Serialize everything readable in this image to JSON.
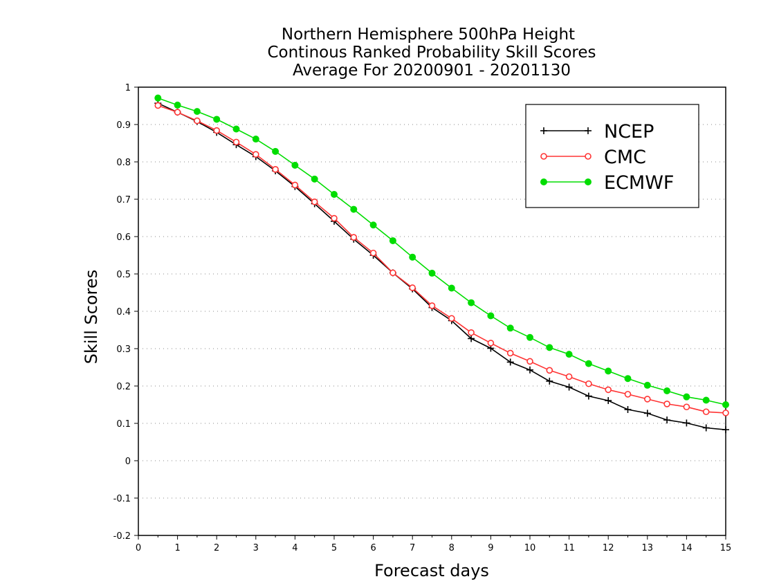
{
  "chart_data": {
    "type": "line",
    "title_lines": [
      "Northern Hemisphere 500hPa Height",
      "Continous Ranked Probability Skill Scores",
      "Average For 20200901 - 20201130"
    ],
    "xlabel": "Forecast days",
    "ylabel": "Skill Scores",
    "xlim": [
      0,
      15
    ],
    "ylim": [
      -0.2,
      1
    ],
    "xticks": [
      0,
      1,
      2,
      3,
      4,
      5,
      6,
      7,
      8,
      9,
      10,
      11,
      12,
      13,
      14,
      15
    ],
    "xtick_labels": [
      "0",
      "1",
      "2",
      "3",
      "4",
      "5",
      "6",
      "7",
      "8",
      "9",
      "10",
      "11",
      "12",
      "13",
      "14",
      "15"
    ],
    "yticks": [
      -0.2,
      -0.1,
      0,
      0.1,
      0.2,
      0.3,
      0.4,
      0.5,
      0.6,
      0.7,
      0.8,
      0.9,
      1
    ],
    "ytick_labels": [
      "-0.2",
      "-0.1",
      "0",
      "0.1",
      "0.2",
      "0.3",
      "0.4",
      "0.5",
      "0.6",
      "0.7",
      "0.8",
      "0.9",
      "1"
    ],
    "grid": "horizontal dotted",
    "legend_position": "top-right",
    "x": [
      0.5,
      1,
      1.5,
      2,
      2.5,
      3,
      3.5,
      4,
      4.5,
      5,
      5.5,
      6,
      6.5,
      7,
      7.5,
      8,
      8.5,
      9,
      9.5,
      10,
      10.5,
      11,
      11.5,
      12,
      12.5,
      13,
      13.5,
      14,
      14.5,
      15
    ],
    "series": [
      {
        "name": "NCEP",
        "color": "#000000",
        "marker": "plus",
        "values": [
          0.957,
          0.933,
          0.908,
          0.879,
          0.846,
          0.814,
          0.776,
          0.734,
          0.688,
          0.641,
          0.593,
          0.55,
          0.503,
          0.46,
          0.41,
          0.375,
          0.327,
          0.301,
          0.264,
          0.243,
          0.213,
          0.197,
          0.173,
          0.161,
          0.137,
          0.127,
          0.109,
          0.101,
          0.088,
          0.083
        ]
      },
      {
        "name": "CMC",
        "color": "#ff3333",
        "marker": "open-circle",
        "values": [
          0.951,
          0.933,
          0.91,
          0.884,
          0.853,
          0.82,
          0.78,
          0.738,
          0.693,
          0.649,
          0.598,
          0.556,
          0.503,
          0.463,
          0.415,
          0.381,
          0.343,
          0.315,
          0.288,
          0.266,
          0.242,
          0.225,
          0.206,
          0.19,
          0.178,
          0.165,
          0.152,
          0.144,
          0.131,
          0.128
        ]
      },
      {
        "name": "ECMWF",
        "color": "#00dd00",
        "marker": "filled-circle",
        "values": [
          0.971,
          0.952,
          0.935,
          0.914,
          0.888,
          0.861,
          0.828,
          0.791,
          0.754,
          0.713,
          0.673,
          0.631,
          0.589,
          0.545,
          0.502,
          0.462,
          0.423,
          0.388,
          0.355,
          0.33,
          0.303,
          0.285,
          0.26,
          0.24,
          0.22,
          0.202,
          0.187,
          0.171,
          0.162,
          0.15
        ]
      }
    ]
  }
}
